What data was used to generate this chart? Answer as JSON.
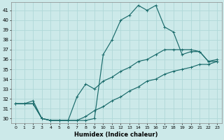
{
  "xlabel": "Humidex (Indice chaleur)",
  "xlim": [
    -0.5,
    23.5
  ],
  "ylim": [
    29.5,
    41.8
  ],
  "yticks": [
    30,
    31,
    32,
    33,
    34,
    35,
    36,
    37,
    38,
    39,
    40,
    41
  ],
  "xticks": [
    0,
    1,
    2,
    3,
    4,
    5,
    6,
    7,
    8,
    9,
    10,
    11,
    12,
    13,
    14,
    15,
    16,
    17,
    18,
    19,
    20,
    21,
    22,
    23
  ],
  "bg_color": "#cce9e9",
  "line_color": "#1a6b6b",
  "grid_color": "#b0d8d8",
  "line1_x": [
    0,
    1,
    2,
    3,
    4,
    5,
    6,
    7,
    8,
    9,
    10,
    11,
    12,
    13,
    14,
    15,
    16,
    17,
    18,
    19,
    20,
    21,
    22,
    23
  ],
  "line1_y": [
    31.5,
    31.5,
    31.5,
    30.0,
    29.8,
    29.8,
    29.8,
    29.8,
    29.8,
    30.0,
    36.5,
    38.0,
    40.0,
    40.5,
    41.5,
    41.0,
    41.5,
    39.3,
    38.8,
    36.5,
    36.8,
    36.8,
    35.8,
    35.8
  ],
  "line2_x": [
    0,
    1,
    2,
    3,
    4,
    5,
    6,
    7,
    8,
    9,
    10,
    11,
    12,
    13,
    14,
    15,
    16,
    17,
    18,
    19,
    20,
    21,
    22,
    23
  ],
  "line2_y": [
    31.5,
    31.5,
    31.8,
    30.0,
    29.8,
    29.8,
    29.8,
    32.2,
    33.5,
    33.0,
    33.8,
    34.2,
    34.8,
    35.2,
    35.8,
    36.0,
    36.5,
    37.0,
    37.0,
    37.0,
    37.0,
    36.8,
    35.8,
    36.0
  ],
  "line3_x": [
    0,
    1,
    2,
    3,
    4,
    5,
    6,
    7,
    8,
    9,
    10,
    11,
    12,
    13,
    14,
    15,
    16,
    17,
    18,
    19,
    20,
    21,
    22,
    23
  ],
  "line3_y": [
    31.5,
    31.5,
    31.5,
    30.0,
    29.8,
    29.8,
    29.8,
    29.8,
    30.2,
    30.8,
    31.2,
    31.8,
    32.2,
    32.8,
    33.2,
    33.8,
    34.0,
    34.5,
    34.8,
    35.0,
    35.2,
    35.5,
    35.5,
    35.8
  ]
}
